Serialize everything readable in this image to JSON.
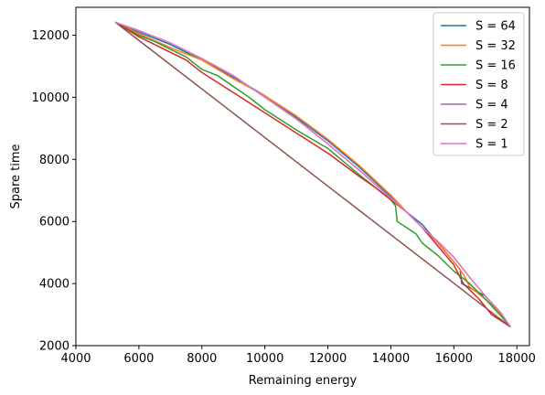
{
  "chart_data": {
    "type": "line",
    "xlabel": "Remaining energy",
    "ylabel": "Spare time",
    "xlim": [
      4000,
      18400
    ],
    "ylim": [
      2000,
      12900
    ],
    "xticks": [
      4000,
      6000,
      8000,
      10000,
      12000,
      14000,
      16000,
      18000
    ],
    "yticks": [
      2000,
      4000,
      6000,
      8000,
      10000,
      12000
    ],
    "grid": false,
    "legend_position": "top-right",
    "series": [
      {
        "name": "S = 64",
        "color": "#1f77b4",
        "points": [
          [
            5250,
            12420
          ],
          [
            6000,
            12100
          ],
          [
            7000,
            11700
          ],
          [
            8000,
            11200
          ],
          [
            9000,
            10650
          ],
          [
            10000,
            10050
          ],
          [
            11000,
            9350
          ],
          [
            12000,
            8600
          ],
          [
            13000,
            7750
          ],
          [
            14000,
            6800
          ],
          [
            14500,
            6300
          ],
          [
            15000,
            5900
          ],
          [
            15500,
            5300
          ],
          [
            16000,
            4700
          ],
          [
            16200,
            4450
          ],
          [
            16250,
            4000
          ],
          [
            17000,
            3600
          ],
          [
            17500,
            3000
          ],
          [
            17800,
            2600
          ]
        ]
      },
      {
        "name": "S = 32",
        "color": "#ff7f0e",
        "points": [
          [
            5250,
            12420
          ],
          [
            6000,
            12050
          ],
          [
            7000,
            11600
          ],
          [
            7500,
            11400
          ],
          [
            8000,
            11200
          ],
          [
            9000,
            10600
          ],
          [
            10000,
            10050
          ],
          [
            11000,
            9400
          ],
          [
            12000,
            8650
          ],
          [
            13000,
            7800
          ],
          [
            14000,
            6850
          ],
          [
            14600,
            6200
          ],
          [
            15000,
            5800
          ],
          [
            15500,
            5300
          ],
          [
            16000,
            4700
          ],
          [
            16300,
            4300
          ],
          [
            16500,
            3900
          ],
          [
            17000,
            3500
          ],
          [
            17500,
            3000
          ],
          [
            17800,
            2600
          ]
        ]
      },
      {
        "name": "S = 16",
        "color": "#2ca02c",
        "points": [
          [
            5250,
            12420
          ],
          [
            6000,
            12000
          ],
          [
            6500,
            11800
          ],
          [
            7000,
            11550
          ],
          [
            7500,
            11300
          ],
          [
            8000,
            10900
          ],
          [
            8500,
            10700
          ],
          [
            9000,
            10350
          ],
          [
            9500,
            10000
          ],
          [
            10000,
            9600
          ],
          [
            11000,
            8950
          ],
          [
            12000,
            8350
          ],
          [
            13000,
            7500
          ],
          [
            13500,
            7100
          ],
          [
            14000,
            6700
          ],
          [
            14150,
            6500
          ],
          [
            14200,
            6000
          ],
          [
            14500,
            5800
          ],
          [
            14800,
            5600
          ],
          [
            15000,
            5300
          ],
          [
            15500,
            4900
          ],
          [
            16000,
            4400
          ],
          [
            16500,
            4000
          ],
          [
            17000,
            3500
          ],
          [
            17500,
            2950
          ],
          [
            17800,
            2600
          ]
        ]
      },
      {
        "name": "S = 8",
        "color": "#d62728",
        "points": [
          [
            5250,
            12420
          ],
          [
            6000,
            11950
          ],
          [
            6500,
            11700
          ],
          [
            7000,
            11450
          ],
          [
            7500,
            11200
          ],
          [
            8000,
            10800
          ],
          [
            9000,
            10150
          ],
          [
            10000,
            9500
          ],
          [
            11000,
            8850
          ],
          [
            12000,
            8200
          ],
          [
            13000,
            7450
          ],
          [
            13500,
            7100
          ],
          [
            14000,
            6700
          ],
          [
            14500,
            6300
          ],
          [
            15000,
            5800
          ],
          [
            15500,
            5200
          ],
          [
            16000,
            4600
          ],
          [
            16300,
            4000
          ],
          [
            16800,
            3500
          ],
          [
            17200,
            3000
          ],
          [
            17800,
            2600
          ]
        ]
      },
      {
        "name": "S = 4",
        "color": "#9467bd",
        "points": [
          [
            5250,
            12420
          ],
          [
            6000,
            12150
          ],
          [
            7000,
            11750
          ],
          [
            8000,
            11250
          ],
          [
            9000,
            10700
          ],
          [
            10000,
            10000
          ],
          [
            11000,
            9300
          ],
          [
            12000,
            8500
          ],
          [
            13000,
            7650
          ],
          [
            14000,
            6750
          ],
          [
            14500,
            6300
          ],
          [
            15000,
            5800
          ],
          [
            15500,
            5350
          ],
          [
            16000,
            4850
          ],
          [
            16500,
            4200
          ],
          [
            17000,
            3600
          ],
          [
            17500,
            3050
          ],
          [
            17800,
            2600
          ]
        ]
      },
      {
        "name": "S = 2",
        "color": "#8c564b",
        "points": [
          [
            5250,
            12420
          ],
          [
            17800,
            2600
          ]
        ]
      },
      {
        "name": "S = 1",
        "color": "#e377c2",
        "points": [
          [
            5250,
            12420
          ],
          [
            6000,
            12150
          ],
          [
            7000,
            11750
          ],
          [
            8000,
            11250
          ],
          [
            9000,
            10700
          ],
          [
            10000,
            10000
          ],
          [
            11000,
            9300
          ],
          [
            12000,
            8500
          ],
          [
            13000,
            7650
          ],
          [
            14000,
            6750
          ],
          [
            14500,
            6300
          ],
          [
            15000,
            5800
          ],
          [
            15500,
            5350
          ],
          [
            16000,
            4850
          ],
          [
            16500,
            4200
          ],
          [
            17000,
            3600
          ],
          [
            17500,
            3050
          ],
          [
            17800,
            2600
          ]
        ]
      }
    ]
  }
}
